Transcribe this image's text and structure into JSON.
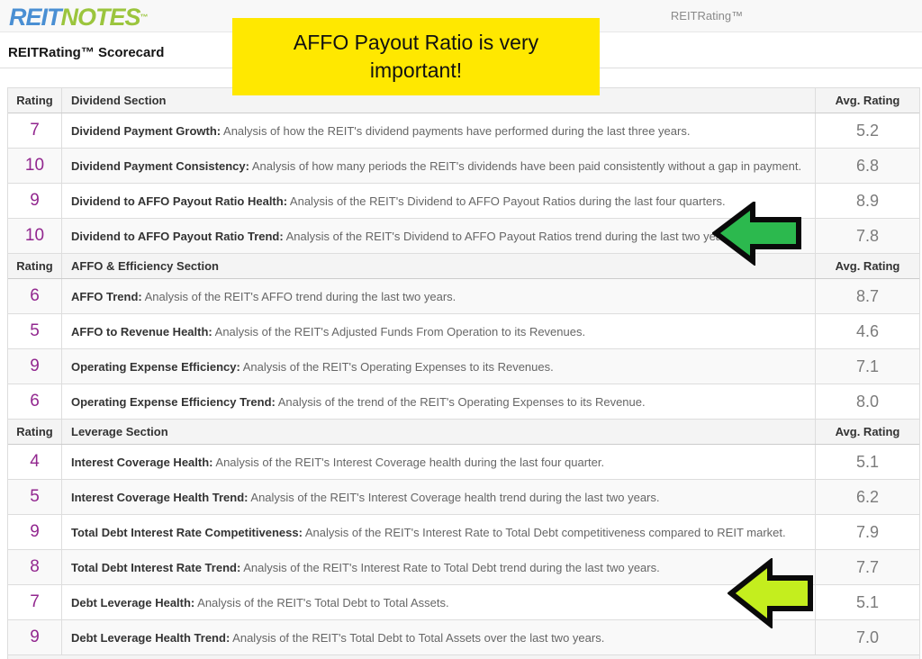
{
  "brand": {
    "reit": "REIT",
    "notes": "NOTES",
    "tm": "™"
  },
  "navbar": {
    "right_text": "REITRating™"
  },
  "page": {
    "title": "REITRating™ Scorecard"
  },
  "callout": {
    "text": "AFFO Payout Ratio is very important!",
    "bg": "#ffe800"
  },
  "table": {
    "rating_header": "Rating",
    "avg_header": "Avg. Rating",
    "sections": [
      {
        "name": "Dividend Section",
        "rows": [
          {
            "rating": "7",
            "label": "Dividend Payment Growth:",
            "desc": "Analysis of how the REIT's dividend payments have performed during the last three years.",
            "avg": "5.2"
          },
          {
            "rating": "10",
            "label": "Dividend Payment Consistency:",
            "desc": "Analysis of how many periods the REIT's dividends have been paid consistently without a gap in payment.",
            "avg": "6.8"
          },
          {
            "rating": "9",
            "label": "Dividend to AFFO Payout Ratio Health:",
            "desc": "Analysis of the REIT's Dividend to AFFO Payout Ratios during the last four quarters.",
            "avg": "8.9"
          },
          {
            "rating": "10",
            "label": "Dividend to AFFO Payout Ratio Trend:",
            "desc": "Analysis of the REIT's Dividend to AFFO Payout Ratios trend during the last two years.",
            "avg": "7.8"
          }
        ]
      },
      {
        "name": "AFFO & Efficiency Section",
        "rows": [
          {
            "rating": "6",
            "label": "AFFO Trend:",
            "desc": "Analysis of the REIT's AFFO trend during the last two years.",
            "avg": "8.7"
          },
          {
            "rating": "5",
            "label": "AFFO to Revenue Health:",
            "desc": "Analysis of the REIT's Adjusted Funds From Operation to its Revenues.",
            "avg": "4.6"
          },
          {
            "rating": "9",
            "label": "Operating Expense Efficiency:",
            "desc": "Analysis of the REIT's Operating Expenses to its Revenues.",
            "avg": "7.1"
          },
          {
            "rating": "6",
            "label": "Operating Expense Efficiency Trend:",
            "desc": "Analysis of the trend of the REIT's Operating Expenses to its Revenue.",
            "avg": "8.0"
          }
        ]
      },
      {
        "name": "Leverage Section",
        "rows": [
          {
            "rating": "4",
            "label": "Interest Coverage Health:",
            "desc": "Analysis of the REIT's Interest Coverage health during the last four quarter.",
            "avg": "5.1"
          },
          {
            "rating": "5",
            "label": "Interest Coverage Health Trend:",
            "desc": "Analysis of the REIT's Interest Coverage health trend during the last two years.",
            "avg": "6.2"
          },
          {
            "rating": "9",
            "label": "Total Debt Interest Rate Competitiveness:",
            "desc": "Analysis of the REIT's Interest Rate to Total Debt competitiveness compared to REIT market.",
            "avg": "7.9"
          },
          {
            "rating": "8",
            "label": "Total Debt Interest Rate Trend:",
            "desc": "Analysis of the REIT's Interest Rate to Total Debt trend during the last two years.",
            "avg": "7.7"
          },
          {
            "rating": "7",
            "label": "Debt Leverage Health:",
            "desc": "Analysis of the REIT's Total Debt to Total Assets.",
            "avg": "5.1"
          },
          {
            "rating": "9",
            "label": "Debt Leverage Health Trend:",
            "desc": "Analysis of the REIT's Total Debt to Total Assets over the last two years.",
            "avg": "7.0"
          }
        ]
      }
    ]
  },
  "arrows": [
    {
      "name": "green-arrow",
      "color": "#2cb94e",
      "outline": "#0a0a0a"
    },
    {
      "name": "yellow-green-arrow",
      "color": "#c4ee1e",
      "outline": "#0a0a0a"
    }
  ]
}
